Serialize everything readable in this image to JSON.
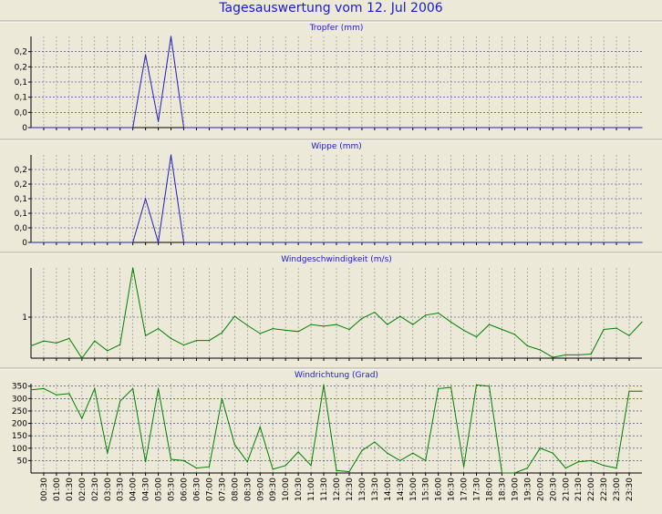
{
  "title": "Tagesauswertung vom 12. Jul 2006",
  "chart_data": [
    {
      "type": "line",
      "title": "Tropfer (mm)",
      "color": "#2020c0",
      "ylim": [
        0,
        0.3
      ],
      "yticks": [
        0,
        0.05,
        0.1,
        0.15,
        0.2,
        0.25
      ],
      "ytick_labels": [
        "0",
        "0,0",
        "0,1",
        "0,1",
        "0,2",
        "0,2"
      ],
      "x": [
        0,
        0.5,
        1,
        1.5,
        2,
        2.5,
        3,
        3.5,
        4,
        4.5,
        5,
        5.5,
        6,
        6.5,
        7,
        7.5,
        8,
        8.5,
        9,
        9.5,
        10,
        10.5,
        11,
        11.5,
        12,
        12.5,
        13,
        13.5,
        14,
        14.5,
        15,
        15.5,
        16,
        16.5,
        17,
        17.5,
        18,
        18.5,
        19,
        19.5,
        20,
        20.5,
        21,
        21.5,
        22,
        22.5,
        23,
        23.5,
        24
      ],
      "values": [
        0,
        0,
        0,
        0,
        0,
        0,
        0,
        0,
        0,
        0.24,
        0.02,
        0.3,
        0,
        0,
        0,
        0,
        0,
        0,
        0,
        0,
        0,
        0,
        0,
        0,
        0,
        0,
        0,
        0,
        0,
        0,
        0,
        0,
        0,
        0,
        0,
        0,
        0,
        0,
        0,
        0,
        0,
        0,
        0,
        0,
        0,
        0,
        0,
        0,
        0
      ]
    },
    {
      "type": "line",
      "title": "Wippe (mm)",
      "color": "#2020c0",
      "ylim": [
        0,
        0.3
      ],
      "yticks": [
        0,
        0.05,
        0.1,
        0.15,
        0.2,
        0.25
      ],
      "ytick_labels": [
        "0",
        "0,0",
        "0,1",
        "0,1",
        "0,2",
        "0,2"
      ],
      "x": [
        0,
        0.5,
        1,
        1.5,
        2,
        2.5,
        3,
        3.5,
        4,
        4.5,
        5,
        5.5,
        6,
        6.5,
        7,
        7.5,
        8,
        8.5,
        9,
        9.5,
        10,
        10.5,
        11,
        11.5,
        12,
        12.5,
        13,
        13.5,
        14,
        14.5,
        15,
        15.5,
        16,
        16.5,
        17,
        17.5,
        18,
        18.5,
        19,
        19.5,
        20,
        20.5,
        21,
        21.5,
        22,
        22.5,
        23,
        23.5,
        24
      ],
      "values": [
        0,
        0,
        0,
        0,
        0,
        0,
        0,
        0,
        0,
        0.15,
        0,
        0.3,
        0,
        0,
        0,
        0,
        0,
        0,
        0,
        0,
        0,
        0,
        0,
        0,
        0,
        0,
        0,
        0,
        0,
        0,
        0,
        0,
        0,
        0,
        0,
        0,
        0,
        0,
        0,
        0,
        0,
        0,
        0,
        0,
        0,
        0,
        0,
        0,
        0
      ]
    },
    {
      "type": "line",
      "title": "Windgeschwindigkeit (m/s)",
      "color": "#008000",
      "ylim": [
        0,
        2.2
      ],
      "yticks": [
        1
      ],
      "ytick_labels": [
        "1"
      ],
      "x": [
        0,
        0.5,
        1,
        1.5,
        2,
        2.5,
        3,
        3.5,
        4,
        4.5,
        5,
        5.5,
        6,
        6.5,
        7,
        7.5,
        8,
        8.5,
        9,
        9.5,
        10,
        10.5,
        11,
        11.5,
        12,
        12.5,
        13,
        13.5,
        14,
        14.5,
        15,
        15.5,
        16,
        16.5,
        17,
        17.5,
        18,
        18.5,
        19,
        19.5,
        20,
        20.5,
        21,
        21.5,
        22,
        22.5,
        23,
        23.5,
        24
      ],
      "values": [
        0.3,
        0.42,
        0.37,
        0.48,
        0.0,
        0.42,
        0.18,
        0.33,
        2.2,
        0.55,
        0.72,
        0.48,
        0.32,
        0.43,
        0.43,
        0.62,
        1.02,
        0.8,
        0.6,
        0.72,
        0.68,
        0.65,
        0.82,
        0.78,
        0.82,
        0.7,
        0.97,
        1.12,
        0.82,
        1.02,
        0.82,
        1.05,
        1.1,
        0.88,
        0.68,
        0.52,
        0.82,
        0.7,
        0.58,
        0.3,
        0.2,
        0.02,
        0.08,
        0.08,
        0.1,
        0.7,
        0.73,
        0.55,
        0.88
      ]
    },
    {
      "type": "line",
      "title": "Windrichtung (Grad)",
      "color": "#008000",
      "ylim": [
        0,
        360
      ],
      "yticks": [
        50,
        100,
        150,
        200,
        250,
        300,
        350
      ],
      "ytick_labels": [
        "50",
        "100",
        "150",
        "200",
        "250",
        "300",
        "350"
      ],
      "x": [
        0,
        0.5,
        1,
        1.5,
        2,
        2.5,
        3,
        3.5,
        4,
        4.5,
        5,
        5.5,
        6,
        6.5,
        7,
        7.5,
        8,
        8.5,
        9,
        9.5,
        10,
        10.5,
        11,
        11.5,
        12,
        12.5,
        13,
        13.5,
        14,
        14.5,
        15,
        15.5,
        16,
        16.5,
        17,
        17.5,
        18,
        18.5,
        19,
        19.5,
        20,
        20.5,
        21,
        21.5,
        22,
        22.5,
        23,
        23.5,
        24
      ],
      "values": [
        335,
        340,
        315,
        320,
        220,
        340,
        80,
        290,
        340,
        45,
        340,
        55,
        50,
        20,
        25,
        300,
        115,
        45,
        185,
        15,
        30,
        85,
        30,
        355,
        10,
        5,
        90,
        125,
        80,
        50,
        80,
        50,
        340,
        345,
        25,
        355,
        350,
        0,
        0,
        20,
        100,
        80,
        20,
        45,
        50,
        30,
        20,
        330,
        330
      ]
    }
  ],
  "x_tick_labels": [
    "00:30",
    "01:00",
    "01:30",
    "02:00",
    "02:30",
    "03:00",
    "03:30",
    "04:00",
    "04:30",
    "05:00",
    "05:30",
    "06:00",
    "06:30",
    "07:00",
    "07:30",
    "08:00",
    "08:30",
    "09:00",
    "09:30",
    "10:00",
    "10:30",
    "11:00",
    "11:30",
    "12:00",
    "12:30",
    "13:00",
    "13:30",
    "14:00",
    "14:30",
    "15:00",
    "15:30",
    "16:00",
    "16:30",
    "17:00",
    "17:30",
    "18:00",
    "18:30",
    "19:00",
    "19:30",
    "20:00",
    "20:30",
    "21:00",
    "21:30",
    "22:00",
    "22:30",
    "23:00",
    "23:30"
  ]
}
